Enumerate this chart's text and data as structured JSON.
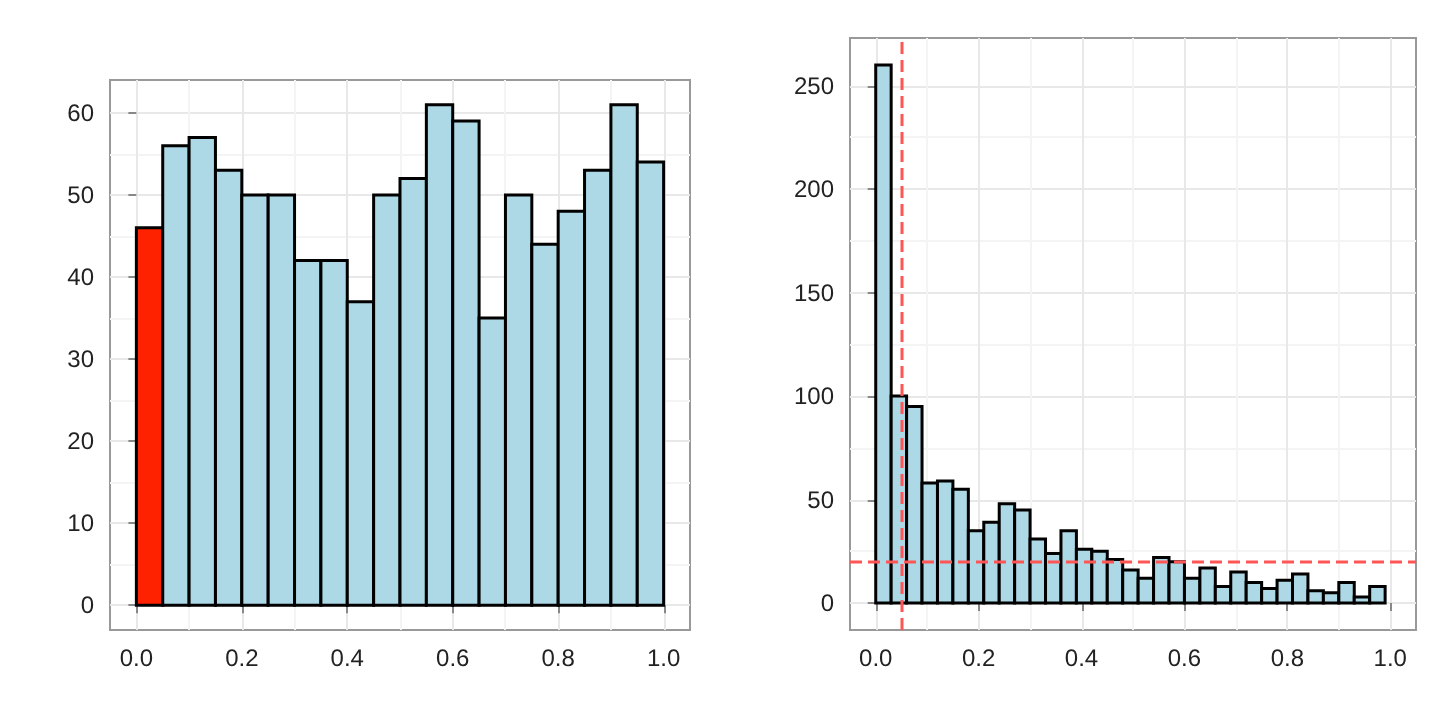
{
  "chart_data": [
    {
      "type": "histogram",
      "bins": [
        0,
        0.05,
        0.1,
        0.15,
        0.2,
        0.25,
        0.3,
        0.35,
        0.4,
        0.45,
        0.5,
        0.55,
        0.6,
        0.65,
        0.7,
        0.75,
        0.8,
        0.85,
        0.9,
        0.95,
        1.0
      ],
      "values": [
        46,
        56,
        57,
        53,
        50,
        50,
        42,
        42,
        37,
        50,
        52,
        61,
        59,
        35,
        50,
        44,
        48,
        53,
        61,
        54
      ],
      "colors": [
        "#ff2200",
        "#add8e6",
        "#add8e6",
        "#add8e6",
        "#add8e6",
        "#add8e6",
        "#add8e6",
        "#add8e6",
        "#add8e6",
        "#add8e6",
        "#add8e6",
        "#add8e6",
        "#add8e6",
        "#add8e6",
        "#add8e6",
        "#add8e6",
        "#add8e6",
        "#add8e6",
        "#add8e6",
        "#add8e6"
      ],
      "xlim": [
        -0.05,
        1.05
      ],
      "xticks": [
        {
          "value": 0,
          "label": "0.0"
        },
        {
          "value": 0.2,
          "label": "0.2"
        },
        {
          "value": 0.4,
          "label": "0.4"
        },
        {
          "value": 0.6,
          "label": "0.6"
        },
        {
          "value": 0.8,
          "label": "0.8"
        },
        {
          "value": 1,
          "label": "1.0"
        }
      ],
      "ylim": [
        -3,
        64
      ],
      "yticks": [
        0,
        10,
        20,
        30,
        40,
        50,
        60
      ],
      "grid": true
    },
    {
      "type": "histogram",
      "bins": [
        0,
        0.03,
        0.06,
        0.09,
        0.12,
        0.15,
        0.18,
        0.21,
        0.24,
        0.27,
        0.3,
        0.33,
        0.36,
        0.39,
        0.42,
        0.45,
        0.48,
        0.51,
        0.54,
        0.57,
        0.6,
        0.63,
        0.66,
        0.69,
        0.72,
        0.75,
        0.78,
        0.81,
        0.84,
        0.87,
        0.9,
        0.93,
        0.96,
        0.99
      ],
      "values": [
        260,
        100,
        95,
        58,
        59,
        55,
        35,
        39,
        48,
        45,
        31,
        24,
        35,
        26,
        25,
        21,
        16,
        12,
        22,
        20,
        12,
        17,
        8,
        15,
        10,
        7,
        11,
        14,
        6,
        5,
        10,
        3,
        8
      ],
      "color": "#add8e6",
      "xlim": [
        -0.05,
        1.05
      ],
      "xticks": [
        {
          "value": 0,
          "label": "0.0"
        },
        {
          "value": 0.2,
          "label": "0.2"
        },
        {
          "value": 0.4,
          "label": "0.4"
        },
        {
          "value": 0.6,
          "label": "0.6"
        },
        {
          "value": 0.8,
          "label": "0.8"
        },
        {
          "value": 1,
          "label": "1.0"
        }
      ],
      "ylim": [
        -13,
        273
      ],
      "yticks": [
        0,
        50,
        100,
        150,
        200,
        250
      ],
      "grid": true,
      "ref_lines": [
        {
          "axis": "x",
          "value": 0.05,
          "color": "#ff5555",
          "line_style": "dashed"
        },
        {
          "axis": "y",
          "value": 20,
          "color": "#ff5555",
          "line_style": "dashed"
        }
      ]
    }
  ]
}
